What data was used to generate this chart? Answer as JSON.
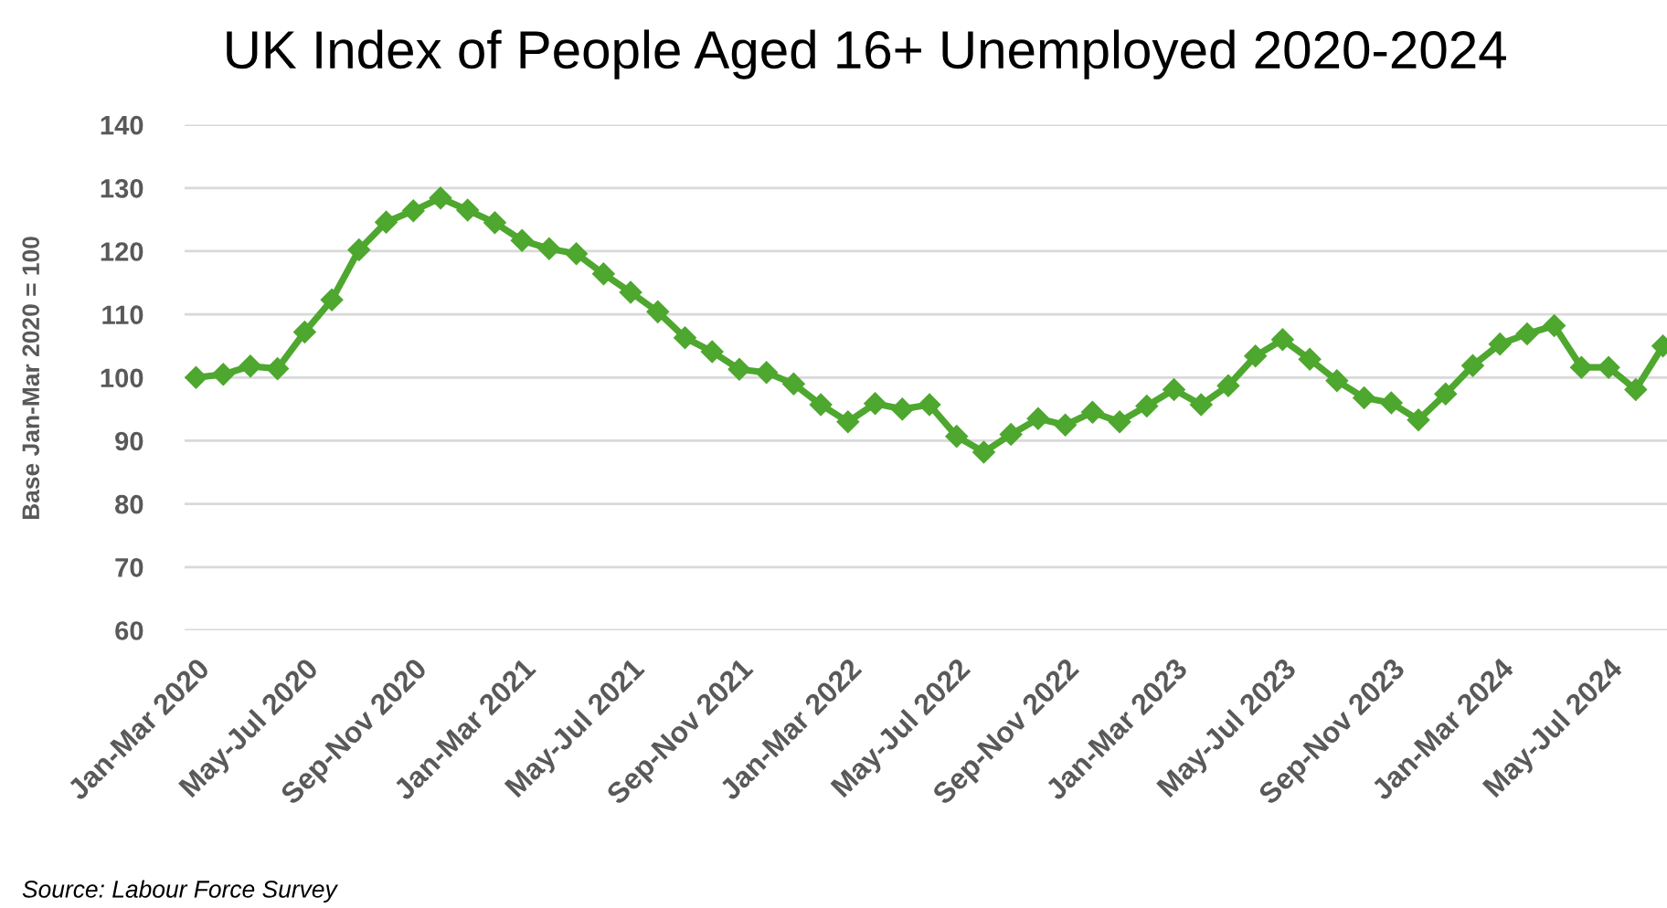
{
  "chart_data": {
    "type": "line",
    "title": "UK Index of People Aged 16+ Unemployed 2020-2024",
    "ylabel": "Base Jan-Mar 2020 = 100",
    "categories": [
      "Jan-Mar 2020",
      null,
      null,
      null,
      "May-Jul 2020",
      null,
      null,
      null,
      "Sep-Nov 2020",
      null,
      null,
      null,
      "Jan-Mar 2021",
      null,
      null,
      null,
      "May-Jul 2021",
      null,
      null,
      null,
      "Sep-Nov 2021",
      null,
      null,
      null,
      "Jan-Mar 2022",
      null,
      null,
      null,
      "May-Jul 2022",
      null,
      null,
      null,
      "Sep-Nov 2022",
      null,
      null,
      null,
      "Jan-Mar 2023",
      null,
      null,
      null,
      "May-Jul 2023",
      null,
      null,
      null,
      "Sep-Nov 2023",
      null,
      null,
      null,
      "Jan-Mar 2024",
      null,
      null,
      null,
      "May-Jul 2024",
      null,
      null
    ],
    "series": [
      {
        "color": "#4ea72e",
        "values": [
          100,
          100.5,
          101.8,
          101.4,
          107.2,
          112.3,
          120.2,
          124.6,
          126.4,
          128.4,
          126.5,
          124.5,
          121.7,
          120.4,
          119.6,
          116.4,
          113.5,
          110.4,
          106.3,
          104.1,
          101.3,
          100.8,
          99.0,
          95.7,
          93.0,
          95.9,
          95.0,
          95.7,
          90.7,
          88.2,
          91.0,
          93.5,
          92.5,
          94.5,
          93.0,
          95.5,
          98.1,
          95.7,
          98.7,
          103.4,
          106.0,
          102.9,
          99.5,
          96.8,
          96.0,
          93.3,
          97.4,
          101.9,
          105.3,
          106.9,
          108.2,
          101.6,
          101.6,
          98.1,
          105
        ]
      }
    ],
    "ylim": [
      60,
      140
    ],
    "yticks": [
      60,
      70,
      80,
      90,
      100,
      110,
      120,
      130,
      140
    ],
    "grid": "y",
    "marker": "diamond",
    "line_style": "solid",
    "annotations": [
      "Source: Labour Force Survey"
    ]
  }
}
